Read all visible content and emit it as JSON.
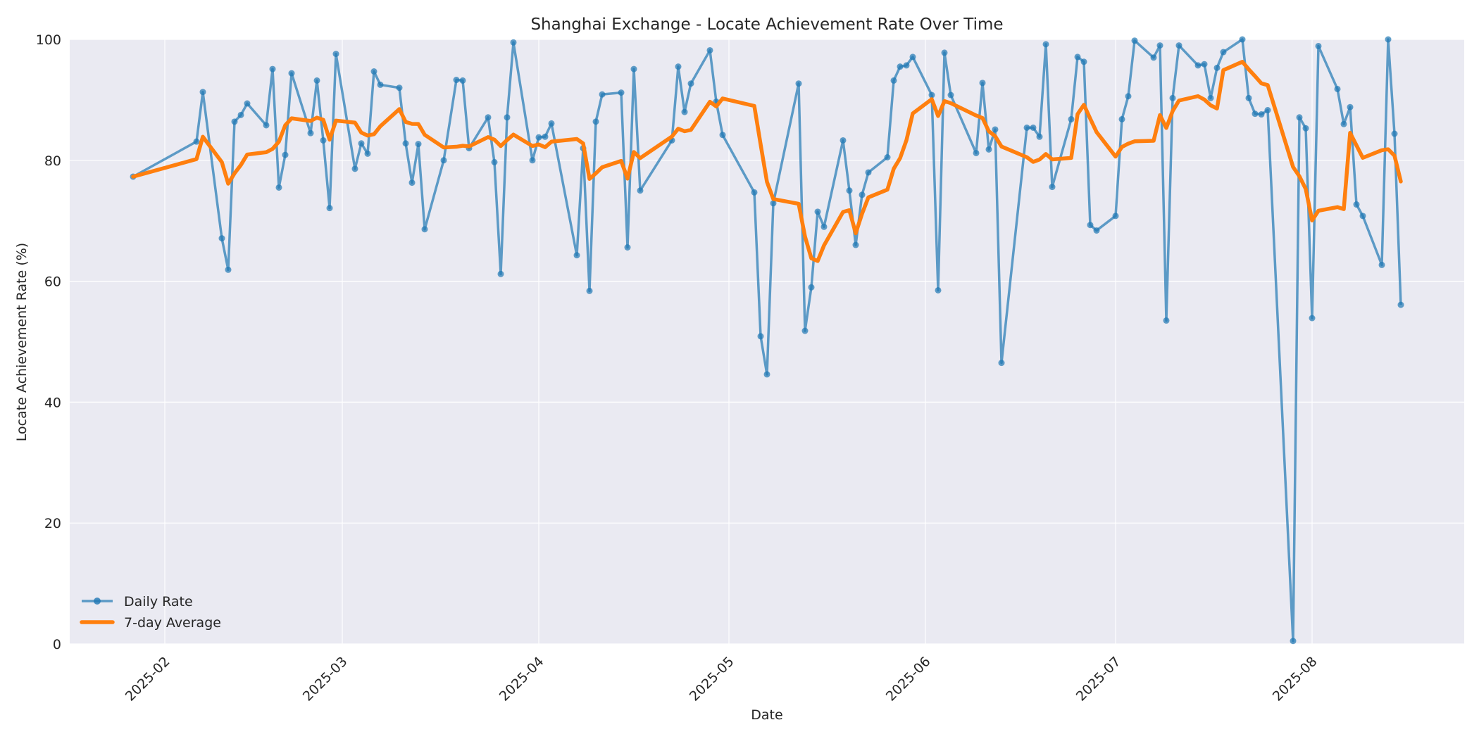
{
  "chart_data": {
    "type": "line",
    "title": "Shanghai Exchange - Locate Achievement Rate Over Time",
    "xlabel": "Date",
    "ylabel": "Locate Achievement Rate (%)",
    "ylim": [
      0,
      100
    ],
    "yticks": [
      0,
      20,
      40,
      60,
      80,
      100
    ],
    "xticks": [
      "2025-02",
      "2025-03",
      "2025-04",
      "2025-05",
      "2025-06",
      "2025-07",
      "2025-08"
    ],
    "xlim": [
      "2025-01-17",
      "2025-08-25"
    ],
    "grid": true,
    "legend_position": "lower left",
    "colors": {
      "daily": "#1f77b4",
      "average": "#ff7f0e",
      "plot_bg": "#eaeaf2",
      "grid": "#ffffff"
    },
    "series": [
      {
        "name": "Daily Rate",
        "style": "line-with-markers",
        "x": [
          "2025-01-27",
          "2025-02-06",
          "2025-02-07",
          "2025-02-10",
          "2025-02-11",
          "2025-02-12",
          "2025-02-13",
          "2025-02-14",
          "2025-02-17",
          "2025-02-18",
          "2025-02-19",
          "2025-02-20",
          "2025-02-21",
          "2025-02-24",
          "2025-02-25",
          "2025-02-26",
          "2025-02-27",
          "2025-02-28",
          "2025-03-03",
          "2025-03-04",
          "2025-03-05",
          "2025-03-06",
          "2025-03-07",
          "2025-03-10",
          "2025-03-11",
          "2025-03-12",
          "2025-03-13",
          "2025-03-14",
          "2025-03-17",
          "2025-03-19",
          "2025-03-20",
          "2025-03-21",
          "2025-03-24",
          "2025-03-25",
          "2025-03-26",
          "2025-03-27",
          "2025-03-28",
          "2025-03-31",
          "2025-04-01",
          "2025-04-02",
          "2025-04-03",
          "2025-04-07",
          "2025-04-08",
          "2025-04-09",
          "2025-04-10",
          "2025-04-11",
          "2025-04-14",
          "2025-04-15",
          "2025-04-16",
          "2025-04-17",
          "2025-04-22",
          "2025-04-23",
          "2025-04-24",
          "2025-04-25",
          "2025-04-28",
          "2025-04-29",
          "2025-04-30",
          "2025-05-05",
          "2025-05-06",
          "2025-05-07",
          "2025-05-08",
          "2025-05-12",
          "2025-05-13",
          "2025-05-14",
          "2025-05-15",
          "2025-05-16",
          "2025-05-19",
          "2025-05-20",
          "2025-05-21",
          "2025-05-22",
          "2025-05-23",
          "2025-05-26",
          "2025-05-27",
          "2025-05-28",
          "2025-05-29",
          "2025-05-30",
          "2025-06-02",
          "2025-06-03",
          "2025-06-04",
          "2025-06-05",
          "2025-06-09",
          "2025-06-10",
          "2025-06-11",
          "2025-06-12",
          "2025-06-13",
          "2025-06-17",
          "2025-06-18",
          "2025-06-19",
          "2025-06-20",
          "2025-06-21",
          "2025-06-24",
          "2025-06-25",
          "2025-06-26",
          "2025-06-27",
          "2025-06-28",
          "2025-07-01",
          "2025-07-02",
          "2025-07-03",
          "2025-07-04",
          "2025-07-07",
          "2025-07-08",
          "2025-07-09",
          "2025-07-10",
          "2025-07-11",
          "2025-07-14",
          "2025-07-15",
          "2025-07-16",
          "2025-07-17",
          "2025-07-18",
          "2025-07-21",
          "2025-07-22",
          "2025-07-23",
          "2025-07-24",
          "2025-07-25",
          "2025-07-29",
          "2025-07-30",
          "2025-07-31",
          "2025-08-01",
          "2025-08-02",
          "2025-08-05",
          "2025-08-06",
          "2025-08-07",
          "2025-08-08",
          "2025-08-09",
          "2025-08-12",
          "2025-08-13",
          "2025-08-14",
          "2025-08-15"
        ],
        "values": [
          77.3,
          83.1,
          91.3,
          67.1,
          61.9,
          86.4,
          87.5,
          89.4,
          85.8,
          95.1,
          75.5,
          80.9,
          94.4,
          84.5,
          93.2,
          83.3,
          72.1,
          97.6,
          78.6,
          82.8,
          81.1,
          94.7,
          92.5,
          92.0,
          82.8,
          76.3,
          82.7,
          68.6,
          80.0,
          93.3,
          93.2,
          82.0,
          87.1,
          79.7,
          61.2,
          87.1,
          99.5,
          80.0,
          83.8,
          83.9,
          86.1,
          64.3,
          82.0,
          58.4,
          86.4,
          90.9,
          91.2,
          65.6,
          95.1,
          75.0,
          83.3,
          95.5,
          88.0,
          92.7,
          98.2,
          89.7,
          84.2,
          74.7,
          50.9,
          44.6,
          72.9,
          92.7,
          51.8,
          59.0,
          71.5,
          69.0,
          83.3,
          75.0,
          66.0,
          74.3,
          78.0,
          80.5,
          93.2,
          95.5,
          95.7,
          97.1,
          90.8,
          58.5,
          97.8,
          90.8,
          81.2,
          92.8,
          81.8,
          85.1,
          46.5,
          85.4,
          85.4,
          83.9,
          99.2,
          75.6,
          86.8,
          97.1,
          96.3,
          69.3,
          68.4,
          70.8,
          86.8,
          90.6,
          99.8,
          97.0,
          99.0,
          53.5,
          90.3,
          99.0,
          95.7,
          95.9,
          90.3,
          95.3,
          97.9,
          100.0,
          90.3,
          87.7,
          87.6,
          88.3,
          0.5,
          87.1,
          85.3,
          53.9,
          98.9,
          91.8,
          86.0,
          88.8,
          72.7,
          70.8,
          62.7,
          100.0,
          84.4,
          56.1
        ]
      },
      {
        "name": "7-day Average",
        "style": "line",
        "window": 7,
        "note": "rolling mean of the previous 7 observations of Daily Rate (same x values)"
      }
    ]
  },
  "legend": {
    "items": [
      {
        "label": "Daily Rate"
      },
      {
        "label": "7-day Average"
      }
    ]
  }
}
